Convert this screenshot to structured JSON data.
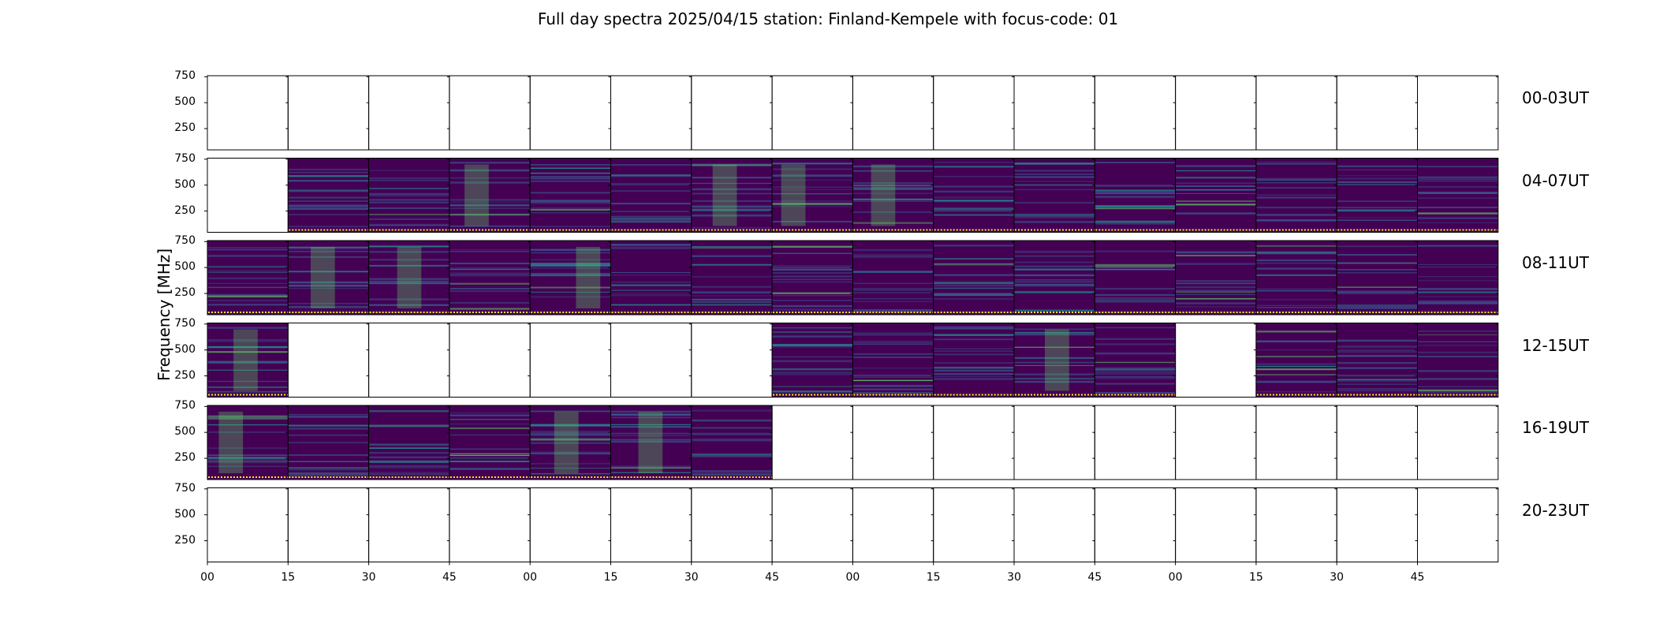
{
  "chart_data": {
    "type": "heatmap",
    "title": "Full day spectra 2025/04/15 station: Finland-Kempele with focus-code: 01",
    "ylabel": "Frequency [MHz]",
    "xlabel": "",
    "ylim": [
      45,
      760
    ],
    "yticks": [
      "250",
      "500",
      "750"
    ],
    "xticks": [
      "00",
      "15",
      "30",
      "45",
      "00",
      "15",
      "30",
      "45",
      "00",
      "15",
      "30",
      "45",
      "00",
      "15",
      "30",
      "45"
    ],
    "rows": [
      {
        "label": "00-03UT",
        "panels": [
          0,
          0,
          0,
          0,
          0,
          0,
          0,
          0,
          0,
          0,
          0,
          0,
          0,
          0,
          0,
          0
        ]
      },
      {
        "label": "04-07UT",
        "panels": [
          0,
          1,
          1,
          1,
          1,
          1,
          1,
          1,
          1,
          1,
          1,
          1,
          1,
          1,
          1,
          1
        ]
      },
      {
        "label": "08-11UT",
        "panels": [
          1,
          1,
          1,
          1,
          1,
          1,
          1,
          1,
          1,
          1,
          1,
          1,
          1,
          1,
          1,
          1
        ]
      },
      {
        "label": "12-15UT",
        "panels": [
          1,
          0,
          0,
          0,
          0,
          0,
          0,
          1,
          1,
          1,
          1,
          1,
          0,
          1,
          1,
          1
        ]
      },
      {
        "label": "16-19UT",
        "panels": [
          1,
          1,
          1,
          1,
          1,
          1,
          1,
          0,
          0,
          0,
          0,
          0,
          0,
          0,
          0,
          0
        ]
      },
      {
        "label": "20-23UT",
        "panels": [
          0,
          0,
          0,
          0,
          0,
          0,
          0,
          0,
          0,
          0,
          0,
          0,
          0,
          0,
          0,
          0
        ]
      }
    ],
    "colormap": [
      "#440154",
      "#3b528b",
      "#21918c",
      "#5ec962",
      "#fde725"
    ],
    "grid": false
  }
}
